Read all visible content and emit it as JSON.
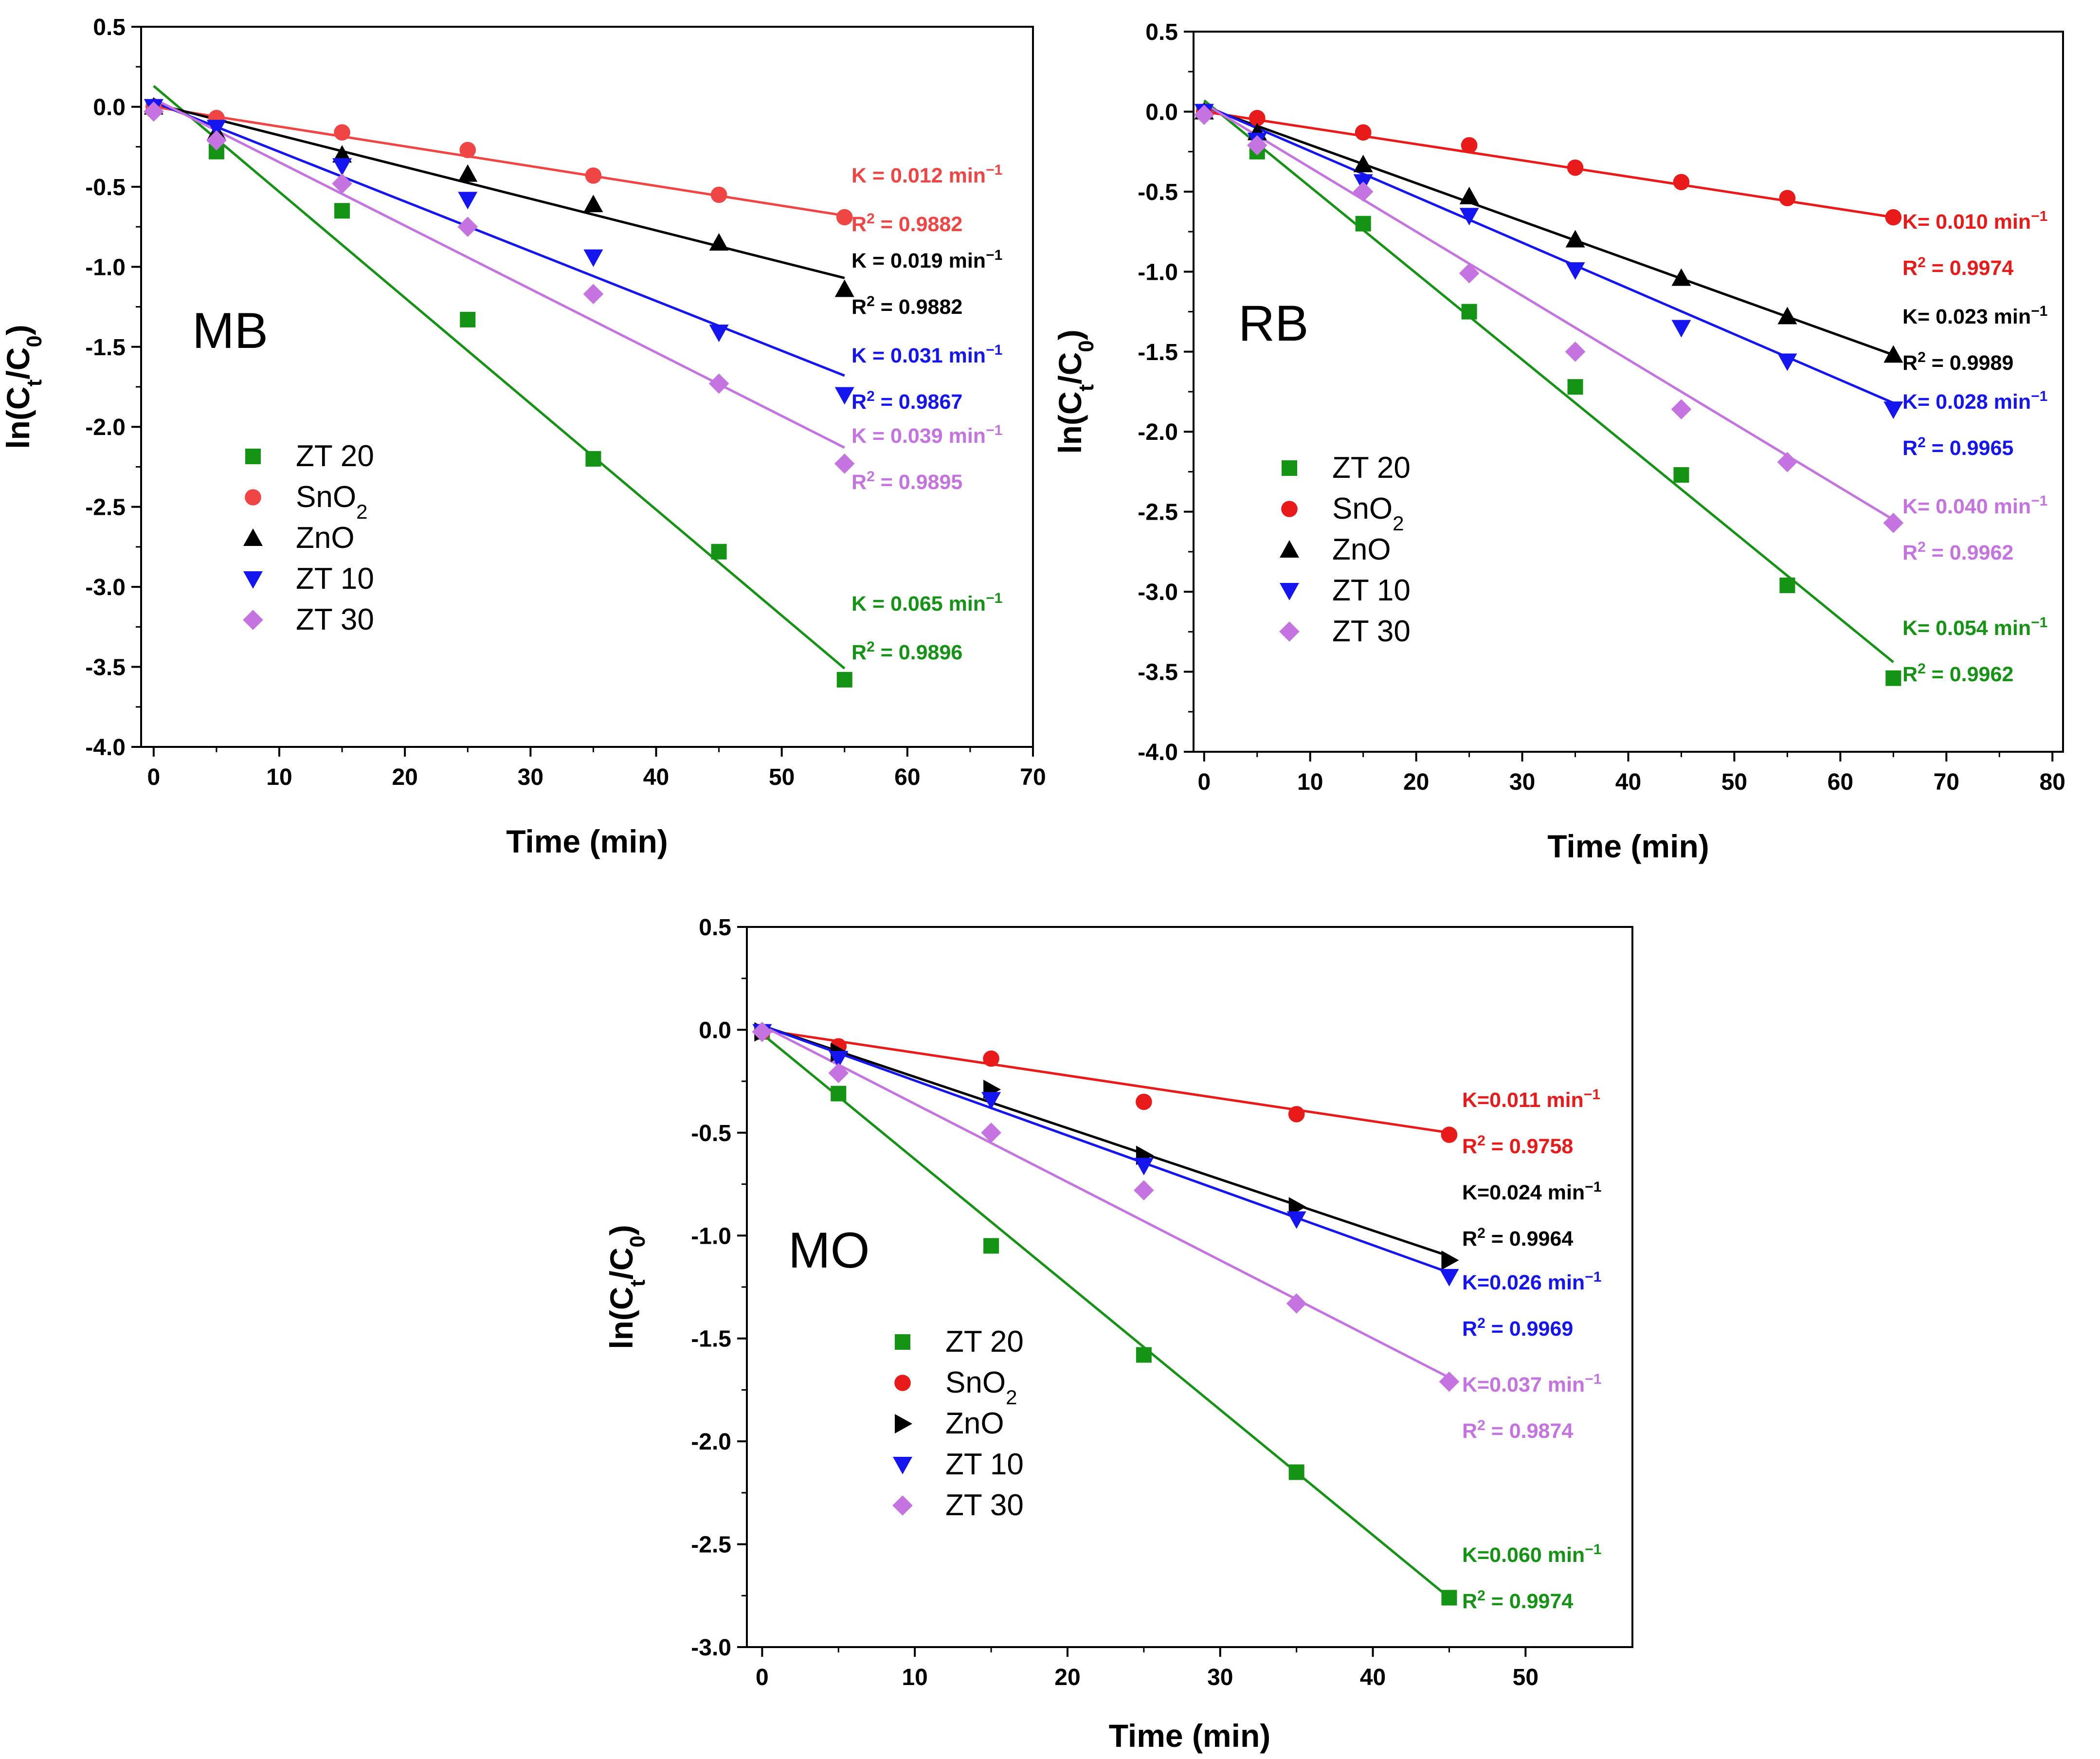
{
  "chart_data": [
    {
      "type": "scatter",
      "panel_label": "MB",
      "xlabel": "Time (min)",
      "ylabel": "ln(Ct/C0)",
      "xlim": [
        -1,
        70
      ],
      "ylim": [
        -4.0,
        0.5
      ],
      "xticks": [
        0,
        10,
        20,
        30,
        40,
        50,
        60,
        70
      ],
      "yticks": [
        0.5,
        0.0,
        -0.5,
        -1.0,
        -1.5,
        -2.0,
        -2.5,
        -3.0,
        -3.5,
        -4.0
      ],
      "tick_labels_x": [
        "0",
        "10",
        "20",
        "30",
        "40",
        "50",
        "60",
        "70"
      ],
      "tick_labels_y": [
        "0.5",
        "0.0",
        "-0.5",
        "-1.0",
        "-1.5",
        "-2.0",
        "-2.5",
        "-3.0",
        "-3.5",
        "-4.0"
      ],
      "legend_order": [
        "ZT 20",
        "SnO2",
        "ZnO",
        "ZT 10",
        "ZT 30"
      ],
      "series": [
        {
          "name": "ZT 20",
          "display": "ZT 20",
          "marker": "square",
          "color": "#149314",
          "x": [
            0,
            5,
            15,
            25,
            35,
            45,
            55
          ],
          "y": [
            0.0,
            -0.28,
            -0.65,
            -1.33,
            -2.2,
            -2.78,
            -3.58
          ],
          "fit": [
            [
              0,
              0.13
            ],
            [
              55,
              -3.51
            ]
          ],
          "k": "0.065",
          "r2": "0.9896",
          "k_label": "K = 0.065 min",
          "r2_label": "R",
          "r2_value": "= 0.9896"
        },
        {
          "name": "SnO2",
          "display": "SnO",
          "marker": "circle",
          "color": "#f04545",
          "x": [
            0,
            5,
            15,
            25,
            35,
            45,
            55
          ],
          "y": [
            0.0,
            -0.07,
            -0.16,
            -0.27,
            -0.43,
            -0.55,
            -0.69
          ],
          "fit": [
            [
              0,
              0.0
            ],
            [
              55,
              -0.68
            ]
          ],
          "k": "0.012",
          "r2": "0.9882",
          "k_label": "K = 0.012 min",
          "r2_label": "R",
          "r2_value": "= 0.9882"
        },
        {
          "name": "ZnO",
          "display": "ZnO",
          "marker": "triangle-up",
          "color": "#000000",
          "x": [
            0,
            5,
            15,
            25,
            35,
            45,
            55
          ],
          "y": [
            0.0,
            -0.16,
            -0.3,
            -0.42,
            -0.61,
            -0.85,
            -1.14
          ],
          "fit": [
            [
              0,
              0.02
            ],
            [
              55,
              -1.07
            ]
          ],
          "k": "0.019",
          "r2": "0.9882",
          "k_label": "K = 0.019 min",
          "r2_label": "R",
          "r2_value": "= 0.9882"
        },
        {
          "name": "ZT 10",
          "display": "ZT 10",
          "marker": "triangle-down",
          "color": "#1515f0",
          "x": [
            0,
            5,
            15,
            25,
            35,
            45,
            55
          ],
          "y": [
            0.0,
            -0.13,
            -0.37,
            -0.58,
            -0.94,
            -1.41,
            -1.8
          ],
          "fit": [
            [
              0,
              0.03
            ],
            [
              55,
              -1.68
            ]
          ],
          "k": "0.031",
          "r2": "0.9867",
          "k_label": "K = 0.031 min",
          "r2_label": "R",
          "r2_value": "= 0.9867"
        },
        {
          "name": "ZT 30",
          "display": "ZT 30",
          "marker": "diamond",
          "color": "#c473e0",
          "x": [
            0,
            5,
            15,
            25,
            35,
            45,
            55
          ],
          "y": [
            -0.03,
            -0.21,
            -0.48,
            -0.75,
            -1.17,
            -1.73,
            -2.23
          ],
          "fit": [
            [
              0,
              0.05
            ],
            [
              55,
              -2.13
            ]
          ],
          "k": "0.039",
          "r2": "0.9895",
          "k_label": "K = 0.039 min",
          "r2_label": "R",
          "r2_value": "= 0.9895"
        }
      ]
    },
    {
      "type": "scatter",
      "panel_label": "RB",
      "xlabel": "Time (min)",
      "ylabel": "ln(Ct/C0)",
      "xlim": [
        -1,
        81
      ],
      "ylim": [
        -4.0,
        0.5
      ],
      "xticks": [
        0,
        10,
        20,
        30,
        40,
        50,
        60,
        70,
        80
      ],
      "yticks": [
        0.5,
        0.0,
        -0.5,
        -1.0,
        -1.5,
        -2.0,
        -2.5,
        -3.0,
        -3.5,
        -4.0
      ],
      "tick_labels_x": [
        "0",
        "10",
        "20",
        "30",
        "40",
        "50",
        "60",
        "70",
        "80"
      ],
      "tick_labels_y": [
        "0.5",
        "0.0",
        "-0.5",
        "-1.0",
        "-1.5",
        "-2.0",
        "-2.5",
        "-3.0",
        "-3.5",
        "-4.0"
      ],
      "legend_order": [
        "ZT 20",
        "SnO2",
        "ZnO",
        "ZT 10",
        "ZT 30"
      ],
      "series": [
        {
          "name": "ZT 20",
          "display": "ZT 20",
          "marker": "square",
          "color": "#149314",
          "x": [
            0,
            5,
            15,
            25,
            35,
            45,
            55,
            65
          ],
          "y": [
            0.0,
            -0.25,
            -0.7,
            -1.25,
            -1.72,
            -2.27,
            -2.96,
            -3.54
          ],
          "fit": [
            [
              0,
              0.07
            ],
            [
              65,
              -3.44
            ]
          ],
          "k": "0.054",
          "r2": "0.9962",
          "k_label": "K= 0.054 min",
          "r2_label": "R",
          "r2_value": "= 0.9962"
        },
        {
          "name": "SnO2",
          "display": "SnO",
          "marker": "circle",
          "color": "#e81a1a",
          "x": [
            0,
            5,
            15,
            25,
            35,
            45,
            55,
            65
          ],
          "y": [
            0.0,
            -0.04,
            -0.13,
            -0.21,
            -0.35,
            -0.44,
            -0.54,
            -0.66
          ],
          "fit": [
            [
              0,
              0.0
            ],
            [
              65,
              -0.66
            ]
          ],
          "k": "0.010",
          "r2": "0.9974",
          "k_label": "K= 0.010 min",
          "r2_label": "R",
          "r2_value": "= 0.9974"
        },
        {
          "name": "ZnO",
          "display": "ZnO",
          "marker": "triangle-up",
          "color": "#000000",
          "x": [
            0,
            5,
            15,
            25,
            35,
            45,
            55,
            65
          ],
          "y": [
            0.0,
            -0.13,
            -0.33,
            -0.53,
            -0.8,
            -1.04,
            -1.28,
            -1.52
          ],
          "fit": [
            [
              0,
              0.03
            ],
            [
              65,
              -1.52
            ]
          ],
          "k": "0.023",
          "r2": "0.9989",
          "k_label": "K= 0.023 min",
          "r2_label": "R",
          "r2_value": "= 0.9989"
        },
        {
          "name": "ZT 10",
          "display": "ZT 10",
          "marker": "triangle-down",
          "color": "#1515f0",
          "x": [
            0,
            5,
            15,
            25,
            35,
            45,
            55,
            65
          ],
          "y": [
            0.0,
            -0.18,
            -0.44,
            -0.65,
            -0.99,
            -1.35,
            -1.56,
            -1.86
          ],
          "fit": [
            [
              0,
              0.04
            ],
            [
              65,
              -1.82
            ]
          ],
          "k": "0.028",
          "r2": "0.9965",
          "k_label": "K= 0.028 min",
          "r2_label": "R",
          "r2_value": "= 0.9965"
        },
        {
          "name": "ZT 30",
          "display": "ZT 30",
          "marker": "diamond",
          "color": "#c473e0",
          "x": [
            0,
            5,
            15,
            25,
            35,
            45,
            55,
            65
          ],
          "y": [
            -0.02,
            -0.21,
            -0.5,
            -1.01,
            -1.5,
            -1.86,
            -2.19,
            -2.57
          ],
          "fit": [
            [
              0,
              0.05
            ],
            [
              65,
              -2.55
            ]
          ],
          "k": "0.040",
          "r2": "0.9962",
          "k_label": "K= 0.040 min",
          "r2_label": "R",
          "r2_value": "= 0.9962"
        }
      ]
    },
    {
      "type": "scatter",
      "panel_label": "MO",
      "xlabel": "Time (min)",
      "ylabel": "ln(Ct/C0)",
      "xlim": [
        -1,
        57
      ],
      "ylim": [
        -3.0,
        0.5
      ],
      "xticks": [
        0,
        10,
        20,
        30,
        40,
        50
      ],
      "yticks": [
        0.5,
        0.0,
        -0.5,
        -1.0,
        -1.5,
        -2.0,
        -2.5,
        -3.0
      ],
      "tick_labels_x": [
        "0",
        "10",
        "20",
        "30",
        "40",
        "50"
      ],
      "tick_labels_y": [
        "0.5",
        "0.0",
        "-0.5",
        "-1.0",
        "-1.5",
        "-2.0",
        "-2.5",
        "-3.0"
      ],
      "legend_order": [
        "ZT 20",
        "SnO2",
        "ZnO",
        "ZT 10",
        "ZT 30"
      ],
      "series": [
        {
          "name": "ZT 20",
          "display": "ZT 20",
          "marker": "square",
          "color": "#149314",
          "x": [
            0,
            5,
            15,
            25,
            35,
            45
          ],
          "y": [
            -0.01,
            -0.31,
            -1.05,
            -1.58,
            -2.15,
            -2.76
          ],
          "fit": [
            [
              0,
              -0.02
            ],
            [
              45,
              -2.76
            ]
          ],
          "k": "0.060",
          "r2": "0.9974",
          "k_label": "K=0.060 min",
          "r2_label": "R",
          "r2_value": "= 0.9974"
        },
        {
          "name": "SnO2",
          "display": "SnO",
          "marker": "circle",
          "color": "#e81a1a",
          "x": [
            0,
            5,
            15,
            25,
            35,
            45
          ],
          "y": [
            -0.01,
            -0.08,
            -0.14,
            -0.35,
            -0.41,
            -0.51
          ],
          "fit": [
            [
              0,
              0.0
            ],
            [
              45,
              -0.5
            ]
          ],
          "k": "0.011",
          "r2": "0.9758",
          "k_label": "K=0.011 min",
          "r2_label": "R",
          "r2_value": "= 0.9758"
        },
        {
          "name": "ZnO",
          "display": "ZnO",
          "marker": "triangle-right",
          "color": "#000000",
          "x": [
            0,
            5,
            15,
            25,
            35,
            45
          ],
          "y": [
            -0.01,
            -0.11,
            -0.29,
            -0.61,
            -0.86,
            -1.12
          ],
          "fit": [
            [
              0,
              0.02
            ],
            [
              45,
              -1.1
            ]
          ],
          "k": "0.024",
          "r2": "0.9964",
          "k_label": "K=0.024 min",
          "r2_label": "R",
          "r2_value": "= 0.9964"
        },
        {
          "name": "ZT 10",
          "display": "ZT 10",
          "marker": "triangle-down",
          "color": "#1515f0",
          "x": [
            0,
            5,
            15,
            25,
            35,
            45
          ],
          "y": [
            -0.01,
            -0.14,
            -0.34,
            -0.66,
            -0.92,
            -1.2
          ],
          "fit": [
            [
              0,
              0.02
            ],
            [
              45,
              -1.18
            ]
          ],
          "k": "0.026",
          "r2": "0.9969",
          "k_label": "K=0.026 min",
          "r2_label": "R",
          "r2_value": "= 0.9969"
        },
        {
          "name": "ZT 30",
          "display": "ZT 30",
          "marker": "diamond",
          "color": "#c473e0",
          "x": [
            0,
            5,
            15,
            25,
            35,
            45
          ],
          "y": [
            -0.01,
            -0.21,
            -0.5,
            -0.78,
            -1.33,
            -1.71
          ],
          "fit": [
            [
              0,
              0.02
            ],
            [
              45,
              -1.69
            ]
          ],
          "k": "0.037",
          "r2": "0.9874",
          "k_label": "K=0.037 min",
          "r2_label": "R",
          "r2_value": "= 0.9874"
        }
      ]
    }
  ]
}
